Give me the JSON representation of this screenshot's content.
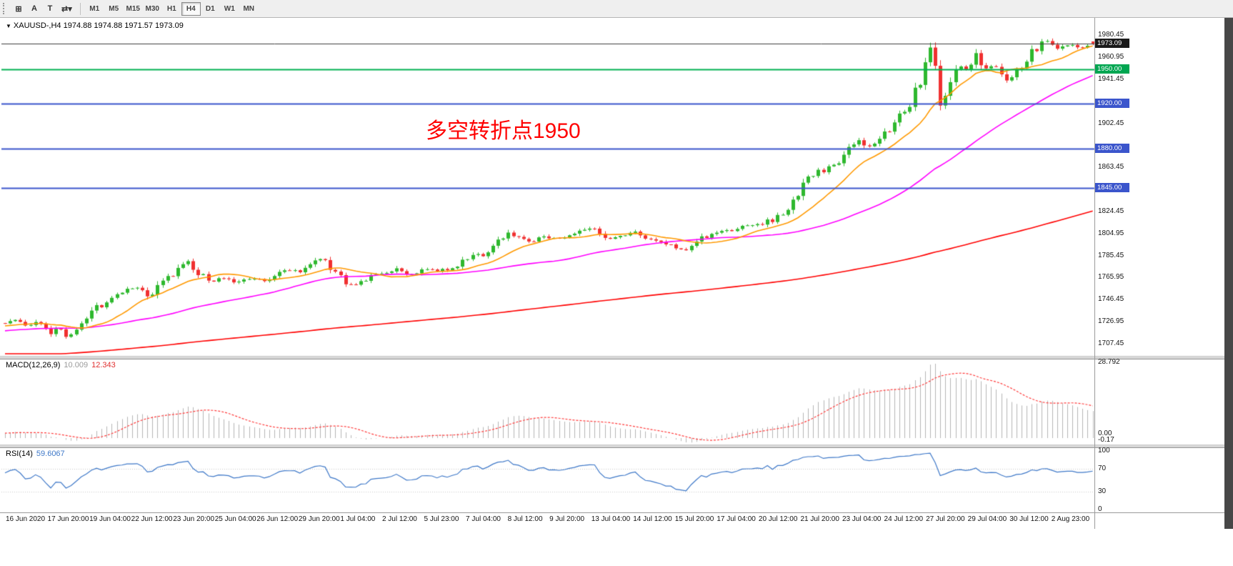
{
  "toolbar": {
    "buttons": [
      {
        "name": "grid",
        "label": "⊞"
      },
      {
        "name": "text-a",
        "label": "A"
      },
      {
        "name": "text-t",
        "label": "T"
      },
      {
        "name": "cycle",
        "label": "⇄▾"
      }
    ],
    "timeframes": [
      "M1",
      "M5",
      "M15",
      "M30",
      "H1",
      "H4",
      "D1",
      "W1",
      "MN"
    ],
    "active_timeframe": "H4"
  },
  "chart": {
    "header_marker": "▼",
    "header": "XAUUSD-,H4  1974.88 1974.88 1971.57 1973.09"
  },
  "annotation": {
    "text": "多空转折点1950",
    "color": "#ff0000"
  },
  "price_axis": {
    "labels": [
      "1980.45",
      "1960.95",
      "1941.45",
      "1902.45",
      "1863.45",
      "1824.45",
      "1804.95",
      "1785.45",
      "1765.95",
      "1746.45",
      "1726.95",
      "1707.45"
    ]
  },
  "price_tags": [
    {
      "text": "1973.09",
      "price": 1973.09,
      "bg": "#1a1a1a"
    },
    {
      "text": "1950.00",
      "price": 1950.0,
      "bg": "#00a651"
    },
    {
      "text": "1920.00",
      "price": 1920.0,
      "bg": "#3b55cc"
    },
    {
      "text": "1880.00",
      "price": 1880.0,
      "bg": "#3b55cc"
    },
    {
      "text": "1845.00",
      "price": 1845.0,
      "bg": "#3b55cc"
    }
  ],
  "indicators": {
    "macd": {
      "label": "MACD(12,26,9)",
      "main_value": "10.009",
      "signal_value": "12.343",
      "axis_labels": [
        "28.792",
        "0.00",
        "-0.17"
      ]
    },
    "rsi": {
      "label": "RSI(14)",
      "value": "59.6067",
      "axis_labels": [
        "100",
        "70",
        "30",
        "0"
      ]
    }
  },
  "time_axis": {
    "labels": [
      "16 Jun 2020",
      "17 Jun 20:00",
      "19 Jun 04:00",
      "22 Jun 12:00",
      "23 Jun 20:00",
      "25 Jun 04:00",
      "26 Jun 12:00",
      "29 Jun 20:00",
      "1 Jul 04:00",
      "2 Jul 12:00",
      "5 Jul 23:00",
      "7 Jul 04:00",
      "8 Jul 12:00",
      "9 Jul 20:00",
      "13 Jul 04:00",
      "14 Jul 12:00",
      "15 Jul 20:00",
      "17 Jul 04:00",
      "20 Jul 12:00",
      "21 Jul 20:00",
      "23 Jul 04:00",
      "24 Jul 12:00",
      "27 Jul 20:00",
      "29 Jul 04:00",
      "30 Jul 12:00",
      "2 Aug 23:00"
    ]
  },
  "chart_data": {
    "type": "candlestick",
    "symbol": "XAUUSD-",
    "timeframe": "H4",
    "current_bar": {
      "open": 1974.88,
      "high": 1974.88,
      "low": 1971.57,
      "close": 1973.09
    },
    "y_axis": {
      "top": 1985.0,
      "bottom": 1703.0
    },
    "levels": [
      {
        "price": 1973.09,
        "color": "#3c3c3c",
        "width": 1
      },
      {
        "price": 1950.0,
        "color": "#00b050",
        "width": 2
      },
      {
        "price": 1920.0,
        "color": "#3b55cc",
        "width": 2
      },
      {
        "price": 1880.0,
        "color": "#3b55cc",
        "width": 2
      },
      {
        "price": 1845.0,
        "color": "#3b55cc",
        "width": 2
      }
    ],
    "bars": 215,
    "lead_bars": 210,
    "candle_up_color": "#2eb82e",
    "candle_down_color": "#f03030",
    "price_path": [
      [
        0.0,
        1726
      ],
      [
        0.01,
        1729
      ],
      [
        0.02,
        1722
      ],
      [
        0.03,
        1727
      ],
      [
        0.043,
        1716
      ],
      [
        0.05,
        1722
      ],
      [
        0.058,
        1712
      ],
      [
        0.068,
        1723
      ],
      [
        0.082,
        1736
      ],
      [
        0.095,
        1748
      ],
      [
        0.11,
        1754
      ],
      [
        0.122,
        1757
      ],
      [
        0.133,
        1748
      ],
      [
        0.145,
        1762
      ],
      [
        0.158,
        1771
      ],
      [
        0.168,
        1780
      ],
      [
        0.178,
        1770
      ],
      [
        0.19,
        1763
      ],
      [
        0.202,
        1766
      ],
      [
        0.213,
        1761
      ],
      [
        0.225,
        1766
      ],
      [
        0.236,
        1763
      ],
      [
        0.248,
        1768
      ],
      [
        0.26,
        1773
      ],
      [
        0.272,
        1772
      ],
      [
        0.283,
        1780
      ],
      [
        0.291,
        1784
      ],
      [
        0.301,
        1772
      ],
      [
        0.312,
        1763
      ],
      [
        0.323,
        1759
      ],
      [
        0.335,
        1766
      ],
      [
        0.348,
        1771
      ],
      [
        0.36,
        1773
      ],
      [
        0.372,
        1768
      ],
      [
        0.385,
        1774
      ],
      [
        0.396,
        1772
      ],
      [
        0.408,
        1774
      ],
      [
        0.42,
        1779
      ],
      [
        0.429,
        1788
      ],
      [
        0.439,
        1783
      ],
      [
        0.45,
        1795
      ],
      [
        0.462,
        1806
      ],
      [
        0.471,
        1802
      ],
      [
        0.482,
        1797
      ],
      [
        0.494,
        1803
      ],
      [
        0.506,
        1800
      ],
      [
        0.518,
        1804
      ],
      [
        0.53,
        1807
      ],
      [
        0.541,
        1809
      ],
      [
        0.552,
        1799
      ],
      [
        0.565,
        1802
      ],
      [
        0.578,
        1807
      ],
      [
        0.59,
        1801
      ],
      [
        0.602,
        1797
      ],
      [
        0.614,
        1794
      ],
      [
        0.625,
        1789
      ],
      [
        0.636,
        1799
      ],
      [
        0.648,
        1804
      ],
      [
        0.66,
        1807
      ],
      [
        0.672,
        1809
      ],
      [
        0.684,
        1812
      ],
      [
        0.695,
        1813
      ],
      [
        0.705,
        1817
      ],
      [
        0.715,
        1822
      ],
      [
        0.725,
        1836
      ],
      [
        0.733,
        1846
      ],
      [
        0.742,
        1855
      ],
      [
        0.752,
        1861
      ],
      [
        0.762,
        1868
      ],
      [
        0.771,
        1873
      ],
      [
        0.779,
        1884
      ],
      [
        0.785,
        1889
      ],
      [
        0.792,
        1880
      ],
      [
        0.8,
        1886
      ],
      [
        0.809,
        1892
      ],
      [
        0.818,
        1903
      ],
      [
        0.827,
        1915
      ],
      [
        0.835,
        1928
      ],
      [
        0.842,
        1946
      ],
      [
        0.848,
        1962
      ],
      [
        0.852,
        1975
      ],
      [
        0.856,
        1945
      ],
      [
        0.86,
        1913
      ],
      [
        0.866,
        1930
      ],
      [
        0.872,
        1945
      ],
      [
        0.878,
        1953
      ],
      [
        0.884,
        1947
      ],
      [
        0.89,
        1958
      ],
      [
        0.894,
        1968
      ],
      [
        0.898,
        1950
      ],
      [
        0.904,
        1950
      ],
      [
        0.91,
        1953
      ],
      [
        0.916,
        1944
      ],
      [
        0.922,
        1938
      ],
      [
        0.928,
        1946
      ],
      [
        0.934,
        1954
      ],
      [
        0.94,
        1960
      ],
      [
        0.947,
        1967
      ],
      [
        0.953,
        1973
      ],
      [
        0.958,
        1976
      ],
      [
        0.963,
        1971
      ],
      [
        0.968,
        1968
      ],
      [
        0.974,
        1971
      ],
      [
        0.98,
        1973
      ],
      [
        0.986,
        1970
      ],
      [
        0.992,
        1969
      ],
      [
        1.0,
        1973.09
      ]
    ],
    "lead_in": [
      [
        -1.0,
        1660
      ],
      [
        -0.7,
        1680
      ],
      [
        -0.45,
        1698
      ],
      [
        -0.25,
        1710
      ],
      [
        -0.12,
        1718
      ],
      [
        0.0,
        1724
      ]
    ],
    "moving_averages": [
      {
        "name": "fast",
        "period": 13,
        "color": "#ff9900"
      },
      {
        "name": "mid",
        "period": 45,
        "color": "#ff00ff"
      },
      {
        "name": "slow",
        "period": 200,
        "color": "#ff0000"
      }
    ],
    "macd": {
      "fast": 12,
      "slow": 26,
      "signal": 9,
      "axis_max": 28.792,
      "hist_color": "#b4b4b4",
      "signal_color": "#ff3b3b"
    },
    "rsi": {
      "period": 14,
      "color": "#3e78c8",
      "levels": [
        70,
        30
      ]
    }
  }
}
